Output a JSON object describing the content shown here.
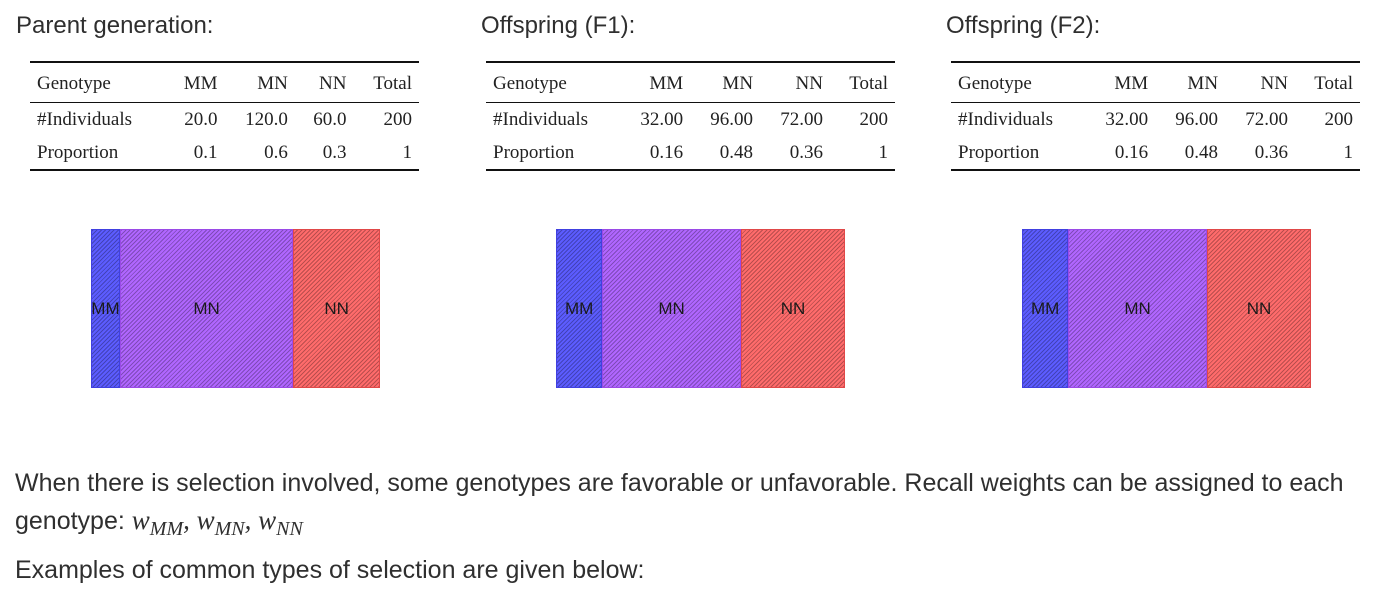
{
  "panels": [
    {
      "title": "Parent generation:",
      "table": {
        "headers": [
          "Genotype",
          "MM",
          "MN",
          "NN",
          "Total"
        ],
        "rows": [
          [
            "#Individuals",
            "20.0",
            "120.0",
            "60.0",
            "200"
          ],
          [
            "Proportion",
            "0.1",
            "0.6",
            "0.3",
            "1"
          ]
        ]
      },
      "bar": {
        "segments": [
          {
            "label": "MM",
            "proportion": 0.1,
            "color": "#5c5cff"
          },
          {
            "label": "MN",
            "proportion": 0.6,
            "color": "#b066ff"
          },
          {
            "label": "NN",
            "proportion": 0.3,
            "color": "#ff6b6b"
          }
        ]
      }
    },
    {
      "title": "Offspring (F1):",
      "table": {
        "headers": [
          "Genotype",
          "MM",
          "MN",
          "NN",
          "Total"
        ],
        "rows": [
          [
            "#Individuals",
            "32.00",
            "96.00",
            "72.00",
            "200"
          ],
          [
            "Proportion",
            "0.16",
            "0.48",
            "0.36",
            "1"
          ]
        ]
      },
      "bar": {
        "segments": [
          {
            "label": "MM",
            "proportion": 0.16,
            "color": "#5c5cff"
          },
          {
            "label": "MN",
            "proportion": 0.48,
            "color": "#b066ff"
          },
          {
            "label": "NN",
            "proportion": 0.36,
            "color": "#ff6b6b"
          }
        ]
      }
    },
    {
      "title": "Offspring (F2):",
      "table": {
        "headers": [
          "Genotype",
          "MM",
          "MN",
          "NN",
          "Total"
        ],
        "rows": [
          [
            "#Individuals",
            "32.00",
            "96.00",
            "72.00",
            "200"
          ],
          [
            "Proportion",
            "0.16",
            "0.48",
            "0.36",
            "1"
          ]
        ]
      },
      "bar": {
        "segments": [
          {
            "label": "MM",
            "proportion": 0.16,
            "color": "#5c5cff"
          },
          {
            "label": "MN",
            "proportion": 0.48,
            "color": "#b066ff"
          },
          {
            "label": "NN",
            "proportion": 0.36,
            "color": "#ff6b6b"
          }
        ]
      }
    }
  ],
  "text": {
    "selection_paragraph": "When there is selection involved, some genotypes are favorable or unfavorable. Recall weights can be assigned to each genotype:",
    "weights": {
      "symbol": "w",
      "mm_sub": "MM",
      "mn_sub": "MN",
      "nn_sub": "NN",
      "separator": ","
    },
    "examples_paragraph": "Examples of common types of selection are given below:"
  }
}
